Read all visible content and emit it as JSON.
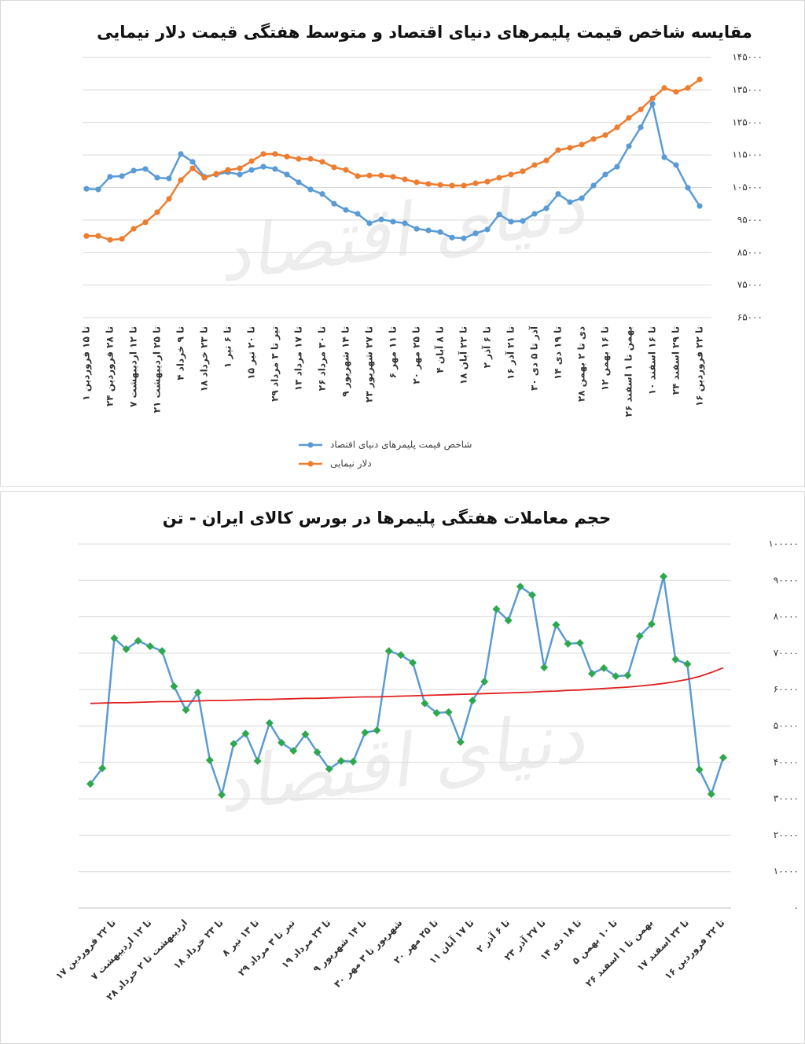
{
  "chart_data": [
    {
      "type": "line",
      "title": "مقایسه شاخص قیمت پلیمرهای دنیای اقتصاد و متوسط هفتگی قیمت دلار نیمایی",
      "watermark": "دنیای اقتصاد",
      "categories": [
        "۱ تا ۱۵ فروردین",
        null,
        "۲۴ تا ۲۸ فروردین",
        null,
        "۷ تا ۱۲ اردیبهشت",
        null,
        "۲۱ تا ۲۵ اردیبهشت",
        null,
        "۴ تا ۹ خرداد",
        null,
        "۱۸ تا ۲۳ خرداد",
        null,
        "۱ تا ۶ تیر",
        null,
        "۱۵ تا ۲۰ تیر",
        null,
        "۲۹ تیر تا ۳ مرداد",
        null,
        "۱۳ تا ۱۷ مرداد",
        null,
        "۲۶ تا ۳۰ مرداد",
        null,
        "۹ تا ۱۴ شهریور",
        null,
        "۲۳ تا ۲۷ شهریور",
        null,
        "۶ تا ۱۱ مهر",
        null,
        "۲۰ تا ۲۵ مهر",
        null,
        "۴ تا ۸ آبان",
        null,
        "۱۸ تا ۲۲ آبان",
        null,
        "۲ تا ۶ آذر",
        null,
        "۱۶ تا ۲۱ آذر",
        null,
        "۳۰ آذر تا ۵ دی",
        null,
        "۱۴ تا ۱۹ دی",
        null,
        "۲۸ دی تا ۲ بهمن",
        null,
        "۱۲ تا ۱۶ بهمن",
        null,
        "۲۶ بهمن تا ۱ اسفند",
        null,
        "۱۰ تا ۱۶ اسفند",
        null,
        "۲۴ تا ۲۹ اسفند",
        null,
        "۱۶ تا ۲۲ فروردین"
      ],
      "series": [
        {
          "name": "شاخص قیمت پلیمرهای دنیای اقتصاد",
          "color": "#5b9bd5",
          "marker": "circle",
          "values": [
            104600,
            104400,
            108300,
            108500,
            110200,
            110700,
            108000,
            107800,
            115300,
            112900,
            108300,
            109000,
            109700,
            109000,
            110400,
            111400,
            110700,
            109000,
            106600,
            104400,
            103000,
            100000,
            98100,
            96900,
            94000,
            95200,
            94500,
            94000,
            92300,
            91800,
            91300,
            89600,
            89400,
            90900,
            92100,
            96700,
            94500,
            94700,
            96900,
            98600,
            103000,
            100500,
            101700,
            105600,
            109000,
            111400,
            117700,
            123500,
            130700,
            114300,
            111900,
            104900,
            99300
          ]
        },
        {
          "name": "دلار نیمایی",
          "color": "#ed7d31",
          "marker": "circle",
          "values": [
            90100,
            90100,
            88900,
            89200,
            92300,
            94300,
            97400,
            101500,
            107300,
            110900,
            108000,
            109200,
            110400,
            110900,
            113100,
            115300,
            115300,
            114500,
            113800,
            113800,
            112900,
            111200,
            110400,
            108500,
            108700,
            108700,
            108300,
            107500,
            106600,
            106100,
            105800,
            105600,
            105600,
            106300,
            106800,
            108000,
            109000,
            110000,
            111900,
            113300,
            116500,
            117200,
            118200,
            119900,
            121100,
            123500,
            126400,
            129000,
            132400,
            135600,
            134400,
            135600,
            138200
          ]
        }
      ],
      "ylim": [
        65000,
        145000
      ],
      "yticks": [
        {
          "value": 65000,
          "label": "۶۵۰۰۰"
        },
        {
          "value": 75000,
          "label": "۷۵۰۰۰"
        },
        {
          "value": 85000,
          "label": "۸۵۰۰۰"
        },
        {
          "value": 95000,
          "label": "۹۵۰۰۰"
        },
        {
          "value": 105000,
          "label": "۱۰۵۰۰۰"
        },
        {
          "value": 115000,
          "label": "۱۱۵۰۰۰"
        },
        {
          "value": 125000,
          "label": "۱۲۵۰۰۰"
        },
        {
          "value": 135000,
          "label": "۱۳۵۰۰۰"
        },
        {
          "value": 145000,
          "label": "۱۴۵۰۰۰"
        }
      ],
      "grid": true,
      "legend": "bottom"
    },
    {
      "type": "line",
      "title": "حجم معاملات هفتگی پلیمرها در بورس کالای ایران - تن",
      "watermark": "دنیای اقتصاد",
      "categories": [
        null,
        null,
        "۱۷ تا ۲۲ فروردین",
        null,
        null,
        "۷ تا ۱۲ اردیبهشت",
        null,
        null,
        "۲۸ اردیبهشت تا ۲ خرداد",
        null,
        null,
        "۱۸ تا ۲۳ خرداد",
        null,
        null,
        "۸ تا ۱۳ تیر",
        null,
        null,
        "۲۹ تیر تا ۳ مرداد",
        null,
        null,
        "۱۹ تا ۲۳ مرداد",
        null,
        null,
        "۹ تا ۱۴ شهریور",
        null,
        null,
        "۳۰ شهریور تا ۳ مهر",
        null,
        null,
        "۲۰ تا ۲۵ مهر",
        null,
        null,
        "۱۱ تا ۱۷ آبان",
        null,
        null,
        "۲ تا ۶ آذر",
        null,
        null,
        "۲۳ تا ۲۷ آذر",
        null,
        null,
        "۱۴ تا ۱۸ دی",
        null,
        null,
        "۵ تا ۱۰ بهمن",
        null,
        null,
        "۲۶ بهمن تا ۱ اسفند",
        null,
        null,
        "۱۷ تا ۲۳ اسفند",
        null,
        null,
        "۱۶ تا ۲۲ فروردین"
      ],
      "series": [
        {
          "color": "#5b9bd5",
          "marker": "diamond",
          "marker_color": "#2ea84e",
          "values": [
            34100,
            38400,
            74100,
            71100,
            73400,
            71900,
            70600,
            60900,
            54400,
            59200,
            40600,
            31100,
            45100,
            47900,
            40400,
            50800,
            45400,
            43200,
            47700,
            42800,
            38200,
            40400,
            40200,
            48200,
            48800,
            70600,
            69500,
            67400,
            56200,
            53600,
            53800,
            45600,
            57000,
            62200,
            82100,
            79000,
            88300,
            86000,
            66100,
            77800,
            72600,
            72800,
            64400,
            65900,
            63700,
            63900,
            74700,
            78000,
            91100,
            68300,
            67000,
            38000,
            31300,
            41300
          ]
        },
        {
          "color": "#e02020",
          "marker": "none",
          "values": [
            56200,
            56300,
            56400,
            56400,
            56500,
            56600,
            56700,
            56700,
            56800,
            56900,
            57000,
            57000,
            57100,
            57200,
            57300,
            57300,
            57400,
            57500,
            57600,
            57600,
            57700,
            57800,
            57900,
            58000,
            58000,
            58100,
            58200,
            58300,
            58400,
            58500,
            58600,
            58700,
            58800,
            58900,
            59000,
            59100,
            59200,
            59300,
            59500,
            59600,
            59800,
            59900,
            60100,
            60300,
            60500,
            60700,
            61000,
            61300,
            61700,
            62200,
            62800,
            63600,
            64700,
            66000
          ]
        }
      ],
      "ylim": [
        0,
        100000
      ],
      "yticks": [
        {
          "value": 0,
          "label": "۰"
        },
        {
          "value": 10000,
          "label": "۱۰۰۰۰"
        },
        {
          "value": 20000,
          "label": "۲۰۰۰۰"
        },
        {
          "value": 30000,
          "label": "۳۰۰۰۰"
        },
        {
          "value": 40000,
          "label": "۴۰۰۰۰"
        },
        {
          "value": 50000,
          "label": "۵۰۰۰۰"
        },
        {
          "value": 60000,
          "label": "۶۰۰۰۰"
        },
        {
          "value": 70000,
          "label": "۷۰۰۰۰"
        },
        {
          "value": 80000,
          "label": "۸۰۰۰۰"
        },
        {
          "value": 90000,
          "label": "۹۰۰۰۰"
        },
        {
          "value": 100000,
          "label": "۱۰۰۰۰۰"
        }
      ],
      "grid": true
    }
  ]
}
